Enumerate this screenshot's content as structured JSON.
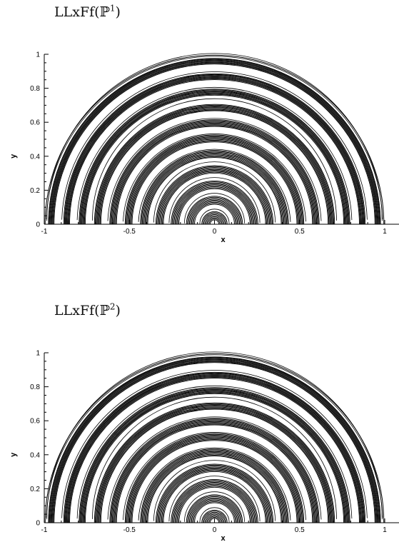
{
  "chart_data": [
    {
      "type": "contour",
      "title_base": "LLxFf(",
      "title_symbol": "ℙ",
      "title_power": "1",
      "title_close": ")",
      "xlabel": "x",
      "ylabel": "y",
      "xlim": [
        -1,
        1
      ],
      "ylim": [
        0,
        1
      ],
      "x_ticks": [
        "-1",
        "-0.5",
        "0",
        "0.5",
        "1"
      ],
      "y_ticks": [
        "0",
        "0.2",
        "0.4",
        "0.6",
        "0.8",
        "1"
      ],
      "x_tick_values": [
        -1,
        -0.5,
        0,
        0.5,
        1
      ],
      "y_tick_values": [
        0,
        0.2,
        0.4,
        0.6,
        0.8,
        1
      ],
      "domain_radius": 1,
      "ring_count": 11,
      "line_color": "#000000"
    },
    {
      "type": "contour",
      "title_base": "LLxFf(",
      "title_symbol": "ℙ",
      "title_power": "2",
      "title_close": ")",
      "xlabel": "x",
      "ylabel": "y",
      "xlim": [
        -1,
        1
      ],
      "ylim": [
        0,
        1
      ],
      "x_ticks": [
        "-1",
        "-0.5",
        "0",
        "0.5",
        "1"
      ],
      "y_ticks": [
        "0",
        "0.2",
        "0.4",
        "0.6",
        "0.8",
        "1"
      ],
      "x_tick_values": [
        -1,
        -0.5,
        0,
        0.5,
        1
      ],
      "y_tick_values": [
        0,
        0.2,
        0.4,
        0.6,
        0.8,
        1
      ],
      "domain_radius": 1,
      "ring_count": 11,
      "line_color": "#000000"
    }
  ]
}
